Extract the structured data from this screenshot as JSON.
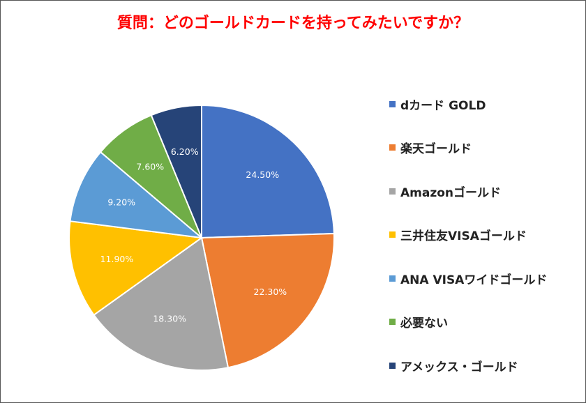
{
  "chart_data": {
    "type": "pie",
    "title": "質問：どのゴールドカードを持ってみたいですか？",
    "categories": [
      "dカード GOLD",
      "楽天ゴールド",
      "Amazonゴールド",
      "三井住友VISAゴールド",
      "ANA VISAワイドゴールド",
      "必要ない",
      "アメックス・ゴールド"
    ],
    "values": [
      24.5,
      22.3,
      18.3,
      11.9,
      9.2,
      7.6,
      6.2
    ],
    "value_labels": [
      "24.50%",
      "22.30%",
      "18.30%",
      "11.90%",
      "9.20%",
      "7.60%",
      "6.20%"
    ],
    "colors": [
      "#4472c4",
      "#ed7d31",
      "#a5a5a5",
      "#ffc000",
      "#5b9bd5",
      "#70ad47",
      "#264478"
    ],
    "legend_position": "right",
    "title_color": "#ff0000"
  }
}
